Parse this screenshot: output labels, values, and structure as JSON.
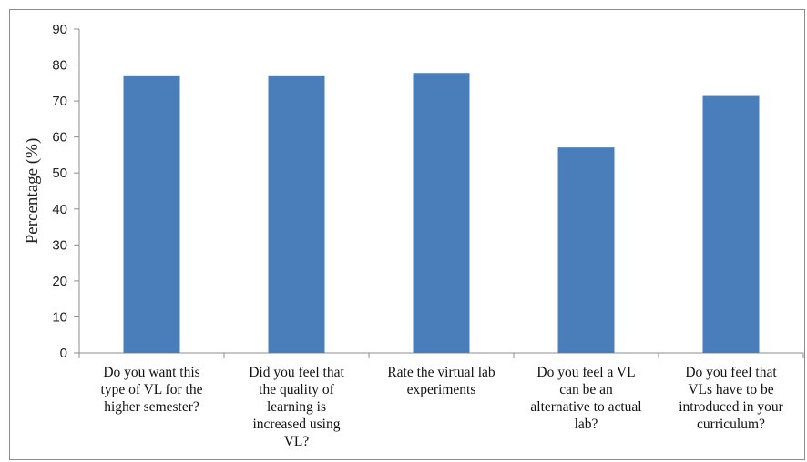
{
  "chart_data": {
    "type": "bar",
    "title": "",
    "xlabel": "",
    "ylabel": "Percentage (%)",
    "ylim": [
      0,
      90
    ],
    "yticks": [
      0,
      10,
      20,
      30,
      40,
      50,
      60,
      70,
      80,
      90
    ],
    "grid": false,
    "legend": "none",
    "bar_color": "#4a7ebb",
    "categories": [
      [
        "Do you want this",
        "type of VL for the",
        "higher semester?"
      ],
      [
        "Did you feel that",
        "the quality of",
        "learning is",
        "increased using",
        "VL?"
      ],
      [
        "Rate the virtual lab",
        "experiments"
      ],
      [
        "Do you feel a VL",
        "can be an",
        "alternative to actual",
        "lab?"
      ],
      [
        "Do you feel that",
        "VLs have to be",
        "introduced in your",
        "curriculum?"
      ]
    ],
    "values": [
      76.9,
      76.9,
      77.8,
      57.1,
      71.4
    ]
  }
}
